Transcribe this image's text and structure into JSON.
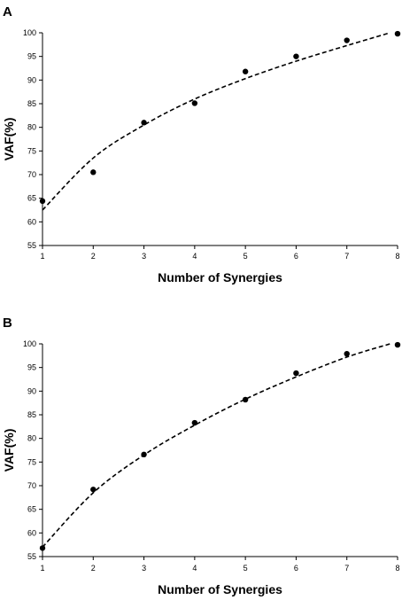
{
  "chart_data": [
    {
      "panel": "A",
      "type": "scatter",
      "xlabel": "Number of Synergies",
      "ylabel": "VAF(%)",
      "xlim": [
        1,
        8
      ],
      "ylim": [
        55,
        100
      ],
      "x_ticks": [
        1,
        2,
        3,
        4,
        5,
        6,
        7,
        8
      ],
      "y_ticks": [
        55,
        60,
        65,
        70,
        75,
        80,
        85,
        90,
        95,
        100
      ],
      "grid": false,
      "points": [
        {
          "x": 1,
          "y": 64.4
        },
        {
          "x": 2,
          "y": 70.5
        },
        {
          "x": 3,
          "y": 81.0
        },
        {
          "x": 4,
          "y": 85.1
        },
        {
          "x": 5,
          "y": 91.8
        },
        {
          "x": 6,
          "y": 95.0
        },
        {
          "x": 7,
          "y": 98.4
        },
        {
          "x": 8,
          "y": 99.8
        }
      ],
      "trend": {
        "style": "dashed",
        "points": [
          {
            "x": 1.0,
            "y": 62.5
          },
          {
            "x": 2.0,
            "y": 73.5
          },
          {
            "x": 3.0,
            "y": 80.5
          },
          {
            "x": 4.0,
            "y": 86.0
          },
          {
            "x": 5.0,
            "y": 90.3
          },
          {
            "x": 6.0,
            "y": 94.0
          },
          {
            "x": 7.0,
            "y": 97.3
          },
          {
            "x": 7.85,
            "y": 100.0
          }
        ]
      }
    },
    {
      "panel": "B",
      "type": "scatter",
      "xlabel": "Number of Synergies",
      "ylabel": "VAF(%)",
      "xlim": [
        1,
        8
      ],
      "ylim": [
        55,
        100
      ],
      "x_ticks": [
        1,
        2,
        3,
        4,
        5,
        6,
        7,
        8
      ],
      "y_ticks": [
        55,
        60,
        65,
        70,
        75,
        80,
        85,
        90,
        95,
        100
      ],
      "grid": false,
      "points": [
        {
          "x": 1,
          "y": 56.8
        },
        {
          "x": 2,
          "y": 69.2
        },
        {
          "x": 3,
          "y": 76.6
        },
        {
          "x": 4,
          "y": 83.3
        },
        {
          "x": 5,
          "y": 88.2
        },
        {
          "x": 6,
          "y": 93.8
        },
        {
          "x": 7,
          "y": 97.9
        },
        {
          "x": 8,
          "y": 99.8
        }
      ],
      "trend": {
        "style": "dashed",
        "points": [
          {
            "x": 1.0,
            "y": 57.0
          },
          {
            "x": 2.0,
            "y": 68.5
          },
          {
            "x": 3.0,
            "y": 76.5
          },
          {
            "x": 4.0,
            "y": 82.8
          },
          {
            "x": 5.0,
            "y": 88.3
          },
          {
            "x": 6.0,
            "y": 93.0
          },
          {
            "x": 7.0,
            "y": 97.2
          },
          {
            "x": 7.85,
            "y": 100.0
          }
        ]
      }
    }
  ]
}
